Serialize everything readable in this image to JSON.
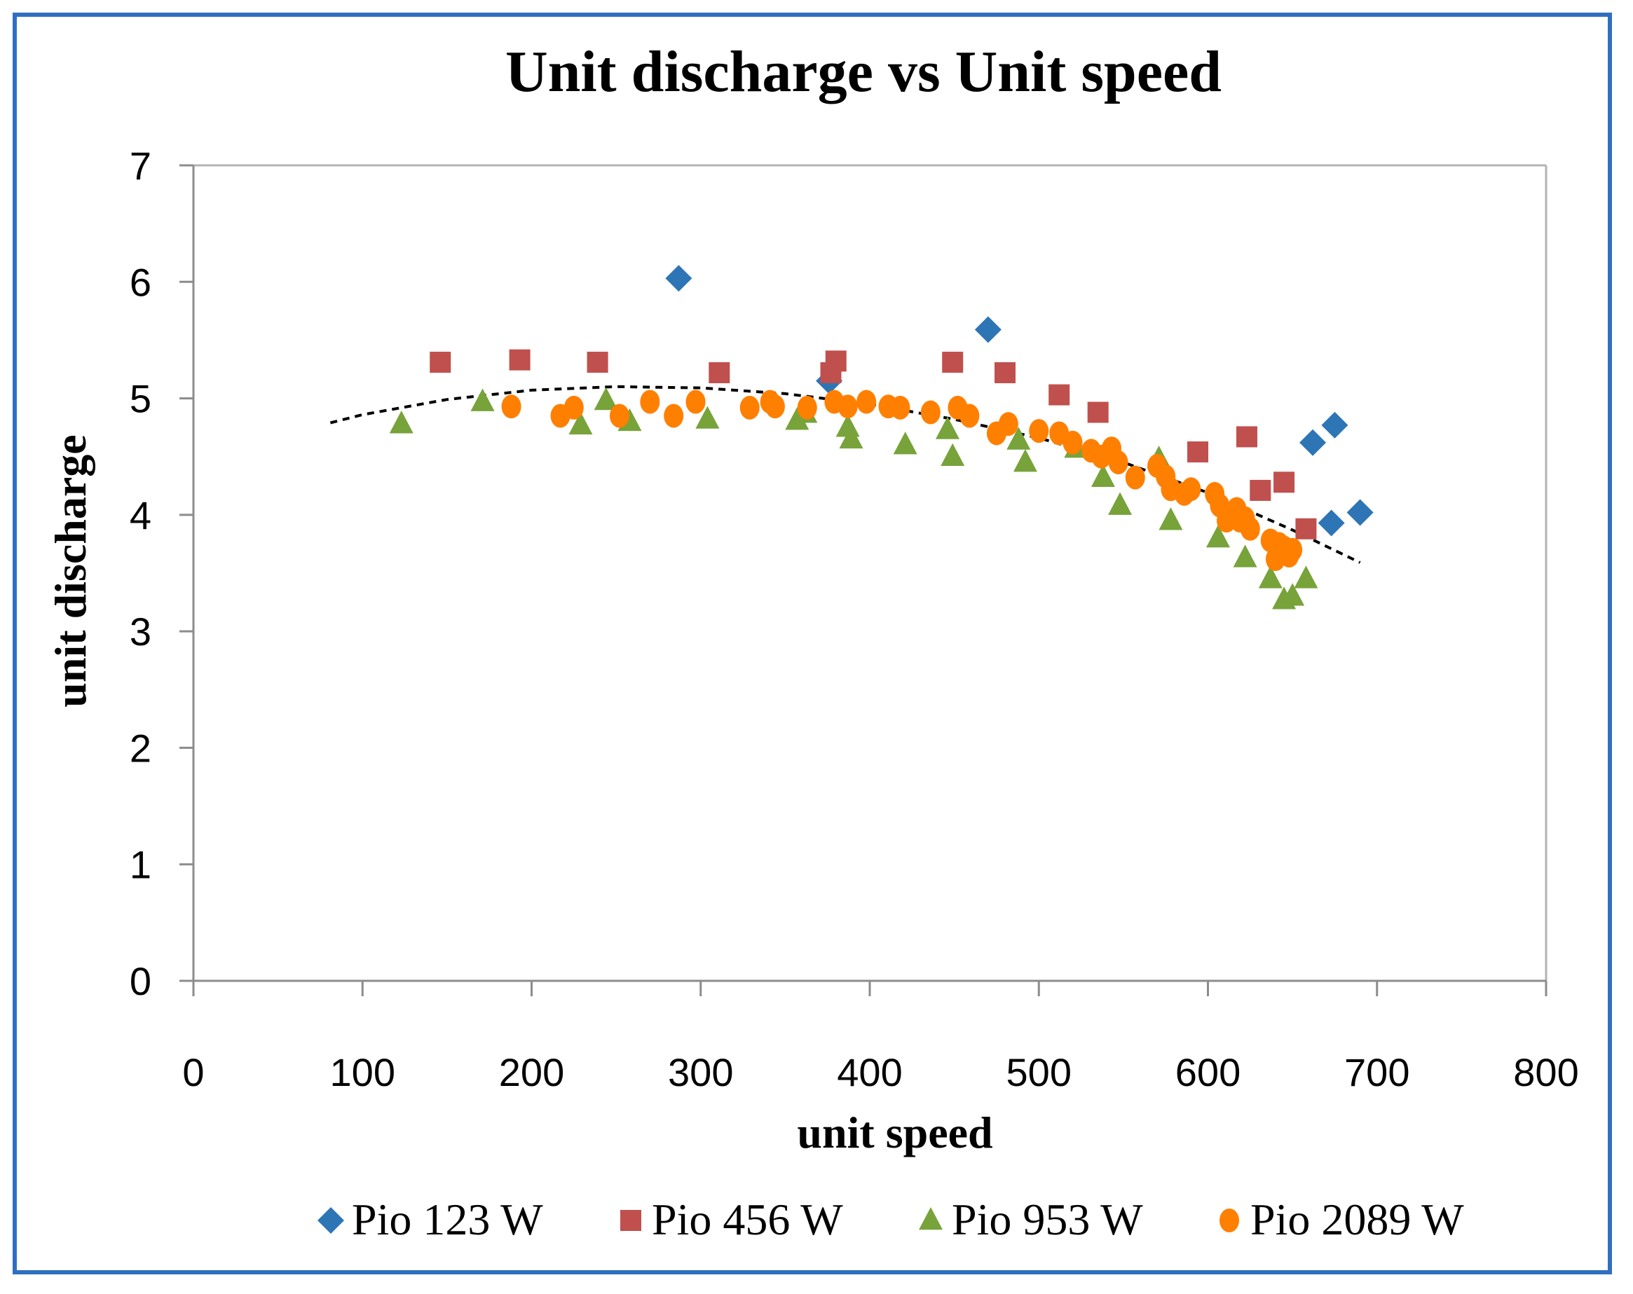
{
  "chart_data": {
    "type": "scatter",
    "title": "Unit discharge vs Unit speed",
    "xlabel": "unit speed",
    "ylabel": "unit discharge",
    "xlim": [
      0,
      800
    ],
    "ylim": [
      0,
      7
    ],
    "x_ticks": [
      0,
      100,
      200,
      300,
      400,
      500,
      600,
      700,
      800
    ],
    "y_ticks": [
      0,
      1,
      2,
      3,
      4,
      5,
      6,
      7
    ],
    "grid": false,
    "legend_position": "bottom",
    "series": [
      {
        "name": "Pio 123 W",
        "marker": "diamond",
        "color": "#2e75b6",
        "points": [
          [
            287,
            6.03
          ],
          [
            376,
            5.15
          ],
          [
            470,
            5.59
          ],
          [
            662,
            4.62
          ],
          [
            673,
            3.93
          ],
          [
            675,
            4.77
          ],
          [
            690,
            4.02
          ]
        ]
      },
      {
        "name": "Pio 456 W",
        "marker": "square",
        "color": "#c0504d",
        "points": [
          [
            146,
            5.31
          ],
          [
            193,
            5.33
          ],
          [
            239,
            5.31
          ],
          [
            311,
            5.22
          ],
          [
            377,
            5.22
          ],
          [
            380,
            5.32
          ],
          [
            449,
            5.31
          ],
          [
            480,
            5.22
          ],
          [
            512,
            5.03
          ],
          [
            535,
            4.88
          ],
          [
            594,
            4.54
          ],
          [
            623,
            4.67
          ],
          [
            631,
            4.21
          ],
          [
            645,
            4.28
          ],
          [
            658,
            3.88
          ]
        ]
      },
      {
        "name": "Pio 953 W",
        "marker": "triangle",
        "color": "#77a33a",
        "points": [
          [
            123,
            4.78
          ],
          [
            171,
            4.97
          ],
          [
            229,
            4.77
          ],
          [
            244,
            4.98
          ],
          [
            258,
            4.8
          ],
          [
            304,
            4.82
          ],
          [
            357,
            4.81
          ],
          [
            362,
            4.87
          ],
          [
            387,
            4.75
          ],
          [
            389,
            4.65
          ],
          [
            421,
            4.6
          ],
          [
            446,
            4.73
          ],
          [
            449,
            4.5
          ],
          [
            488,
            4.64
          ],
          [
            492,
            4.45
          ],
          [
            522,
            4.57
          ],
          [
            538,
            4.32
          ],
          [
            548,
            4.08
          ],
          [
            571,
            4.48
          ],
          [
            578,
            3.95
          ],
          [
            606,
            3.8
          ],
          [
            622,
            3.63
          ],
          [
            637,
            3.45
          ],
          [
            645,
            3.27
          ],
          [
            650,
            3.3
          ],
          [
            658,
            3.45
          ]
        ]
      },
      {
        "name": "Pio 2089 W",
        "marker": "circle",
        "color": "#ff7f00",
        "points": [
          [
            188,
            4.93
          ],
          [
            217,
            4.85
          ],
          [
            225,
            4.92
          ],
          [
            252,
            4.85
          ],
          [
            270,
            4.97
          ],
          [
            284,
            4.85
          ],
          [
            297,
            4.97
          ],
          [
            329,
            4.92
          ],
          [
            341,
            4.97
          ],
          [
            344,
            4.93
          ],
          [
            363,
            4.92
          ],
          [
            379,
            4.97
          ],
          [
            387,
            4.93
          ],
          [
            398,
            4.97
          ],
          [
            411,
            4.93
          ],
          [
            418,
            4.92
          ],
          [
            436,
            4.88
          ],
          [
            452,
            4.92
          ],
          [
            459,
            4.85
          ],
          [
            475,
            4.7
          ],
          [
            482,
            4.78
          ],
          [
            500,
            4.72
          ],
          [
            512,
            4.7
          ],
          [
            520,
            4.62
          ],
          [
            531,
            4.55
          ],
          [
            537,
            4.5
          ],
          [
            543,
            4.57
          ],
          [
            547,
            4.45
          ],
          [
            557,
            4.32
          ],
          [
            570,
            4.42
          ],
          [
            575,
            4.33
          ],
          [
            578,
            4.22
          ],
          [
            586,
            4.18
          ],
          [
            590,
            4.22
          ],
          [
            604,
            4.18
          ],
          [
            607,
            4.08
          ],
          [
            611,
            3.95
          ],
          [
            617,
            4.05
          ],
          [
            619,
            3.95
          ],
          [
            622,
            3.97
          ],
          [
            625,
            3.88
          ],
          [
            637,
            3.78
          ],
          [
            640,
            3.62
          ],
          [
            642,
            3.75
          ],
          [
            645,
            3.72
          ],
          [
            648,
            3.65
          ],
          [
            650,
            3.7
          ]
        ]
      }
    ],
    "trendline": {
      "style": "dashed",
      "color": "#000000",
      "x_range": [
        81,
        690
      ],
      "points": [
        [
          81,
          4.79
        ],
        [
          100,
          4.86
        ],
        [
          150,
          4.99
        ],
        [
          200,
          5.07
        ],
        [
          250,
          5.1
        ],
        [
          300,
          5.09
        ],
        [
          350,
          5.04
        ],
        [
          400,
          4.95
        ],
        [
          450,
          4.82
        ],
        [
          500,
          4.66
        ],
        [
          550,
          4.45
        ],
        [
          600,
          4.19
        ],
        [
          650,
          3.87
        ],
        [
          690,
          3.59
        ]
      ]
    }
  }
}
